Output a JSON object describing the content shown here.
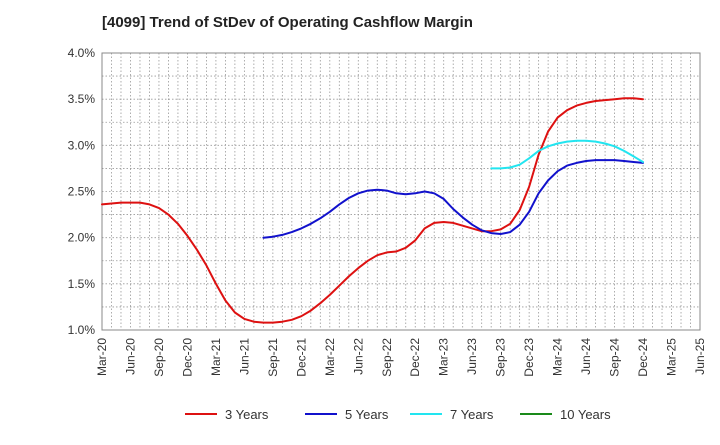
{
  "chart_data": {
    "type": "line",
    "title": "[4099]  Trend of StDev of Operating Cashflow Margin",
    "xlabel": "",
    "ylabel": "",
    "x_ticks": [
      "Mar-20",
      "Jun-20",
      "Sep-20",
      "Dec-20",
      "Mar-21",
      "Jun-21",
      "Sep-21",
      "Dec-21",
      "Mar-22",
      "Jun-22",
      "Sep-22",
      "Dec-22",
      "Mar-23",
      "Jun-23",
      "Sep-23",
      "Dec-23",
      "Mar-24",
      "Jun-24",
      "Sep-24",
      "Dec-24",
      "Mar-25",
      "Jun-25"
    ],
    "y_ticks": [
      "1.0%",
      "1.5%",
      "2.0%",
      "2.5%",
      "3.0%",
      "3.5%",
      "4.0%"
    ],
    "ylim": [
      1.0,
      4.0
    ],
    "grid": true,
    "legend_position": "bottom",
    "series": [
      {
        "name": "3 Years",
        "color": "#dd1111",
        "points": [
          [
            "Mar-20",
            2.36
          ],
          [
            "Apr-20",
            2.37
          ],
          [
            "May-20",
            2.38
          ],
          [
            "Jun-20",
            2.38
          ],
          [
            "Jul-20",
            2.38
          ],
          [
            "Aug-20",
            2.36
          ],
          [
            "Sep-20",
            2.32
          ],
          [
            "Oct-20",
            2.25
          ],
          [
            "Nov-20",
            2.15
          ],
          [
            "Dec-20",
            2.02
          ],
          [
            "Jan-21",
            1.87
          ],
          [
            "Feb-21",
            1.7
          ],
          [
            "Mar-21",
            1.5
          ],
          [
            "Apr-21",
            1.32
          ],
          [
            "May-21",
            1.19
          ],
          [
            "Jun-21",
            1.12
          ],
          [
            "Jul-21",
            1.09
          ],
          [
            "Aug-21",
            1.08
          ],
          [
            "Sep-21",
            1.08
          ],
          [
            "Oct-21",
            1.09
          ],
          [
            "Nov-21",
            1.11
          ],
          [
            "Dec-21",
            1.15
          ],
          [
            "Jan-22",
            1.21
          ],
          [
            "Feb-22",
            1.29
          ],
          [
            "Mar-22",
            1.38
          ],
          [
            "Apr-22",
            1.48
          ],
          [
            "May-22",
            1.58
          ],
          [
            "Jun-22",
            1.67
          ],
          [
            "Jul-22",
            1.75
          ],
          [
            "Aug-22",
            1.81
          ],
          [
            "Sep-22",
            1.84
          ],
          [
            "Oct-22",
            1.85
          ],
          [
            "Nov-22",
            1.89
          ],
          [
            "Dec-22",
            1.97
          ],
          [
            "Jan-23",
            2.1
          ],
          [
            "Feb-23",
            2.16
          ],
          [
            "Mar-23",
            2.17
          ],
          [
            "Apr-23",
            2.16
          ],
          [
            "May-23",
            2.13
          ],
          [
            "Jun-23",
            2.1
          ],
          [
            "Jul-23",
            2.07
          ],
          [
            "Aug-23",
            2.07
          ],
          [
            "Sep-23",
            2.09
          ],
          [
            "Oct-23",
            2.15
          ],
          [
            "Nov-23",
            2.3
          ],
          [
            "Dec-23",
            2.55
          ],
          [
            "Jan-24",
            2.9
          ],
          [
            "Feb-24",
            3.15
          ],
          [
            "Mar-24",
            3.3
          ],
          [
            "Apr-24",
            3.38
          ],
          [
            "May-24",
            3.43
          ],
          [
            "Jun-24",
            3.46
          ],
          [
            "Jul-24",
            3.48
          ],
          [
            "Aug-24",
            3.49
          ],
          [
            "Sep-24",
            3.5
          ],
          [
            "Oct-24",
            3.51
          ],
          [
            "Nov-24",
            3.51
          ],
          [
            "Dec-24",
            3.5
          ]
        ]
      },
      {
        "name": "5 Years",
        "color": "#1111cc",
        "points": [
          [
            "Aug-21",
            2.0
          ],
          [
            "Sep-21",
            2.01
          ],
          [
            "Oct-21",
            2.03
          ],
          [
            "Nov-21",
            2.06
          ],
          [
            "Dec-21",
            2.1
          ],
          [
            "Jan-22",
            2.15
          ],
          [
            "Feb-22",
            2.21
          ],
          [
            "Mar-22",
            2.28
          ],
          [
            "Apr-22",
            2.36
          ],
          [
            "May-22",
            2.43
          ],
          [
            "Jun-22",
            2.48
          ],
          [
            "Jul-22",
            2.51
          ],
          [
            "Aug-22",
            2.52
          ],
          [
            "Sep-22",
            2.51
          ],
          [
            "Oct-22",
            2.48
          ],
          [
            "Nov-22",
            2.47
          ],
          [
            "Dec-22",
            2.48
          ],
          [
            "Jan-23",
            2.5
          ],
          [
            "Feb-23",
            2.48
          ],
          [
            "Mar-23",
            2.42
          ],
          [
            "Apr-23",
            2.31
          ],
          [
            "May-23",
            2.22
          ],
          [
            "Jun-23",
            2.14
          ],
          [
            "Jul-23",
            2.08
          ],
          [
            "Aug-23",
            2.05
          ],
          [
            "Sep-23",
            2.04
          ],
          [
            "Oct-23",
            2.06
          ],
          [
            "Nov-23",
            2.14
          ],
          [
            "Dec-23",
            2.28
          ],
          [
            "Jan-24",
            2.48
          ],
          [
            "Feb-24",
            2.62
          ],
          [
            "Mar-24",
            2.72
          ],
          [
            "Apr-24",
            2.78
          ],
          [
            "May-24",
            2.81
          ],
          [
            "Jun-24",
            2.83
          ],
          [
            "Jul-24",
            2.84
          ],
          [
            "Aug-24",
            2.84
          ],
          [
            "Sep-24",
            2.84
          ],
          [
            "Oct-24",
            2.83
          ],
          [
            "Nov-24",
            2.82
          ],
          [
            "Dec-24",
            2.81
          ]
        ]
      },
      {
        "name": "7 Years",
        "color": "#22e5f0",
        "points": [
          [
            "Aug-23",
            2.75
          ],
          [
            "Sep-23",
            2.75
          ],
          [
            "Oct-23",
            2.76
          ],
          [
            "Nov-23",
            2.79
          ],
          [
            "Dec-23",
            2.86
          ],
          [
            "Jan-24",
            2.94
          ],
          [
            "Feb-24",
            2.99
          ],
          [
            "Mar-24",
            3.02
          ],
          [
            "Apr-24",
            3.04
          ],
          [
            "May-24",
            3.05
          ],
          [
            "Jun-24",
            3.05
          ],
          [
            "Jul-24",
            3.04
          ],
          [
            "Aug-24",
            3.02
          ],
          [
            "Sep-24",
            2.99
          ],
          [
            "Oct-24",
            2.94
          ],
          [
            "Nov-24",
            2.88
          ],
          [
            "Dec-24",
            2.82
          ]
        ]
      },
      {
        "name": "10 Years",
        "color": "#1a8a1a",
        "points": []
      }
    ]
  }
}
